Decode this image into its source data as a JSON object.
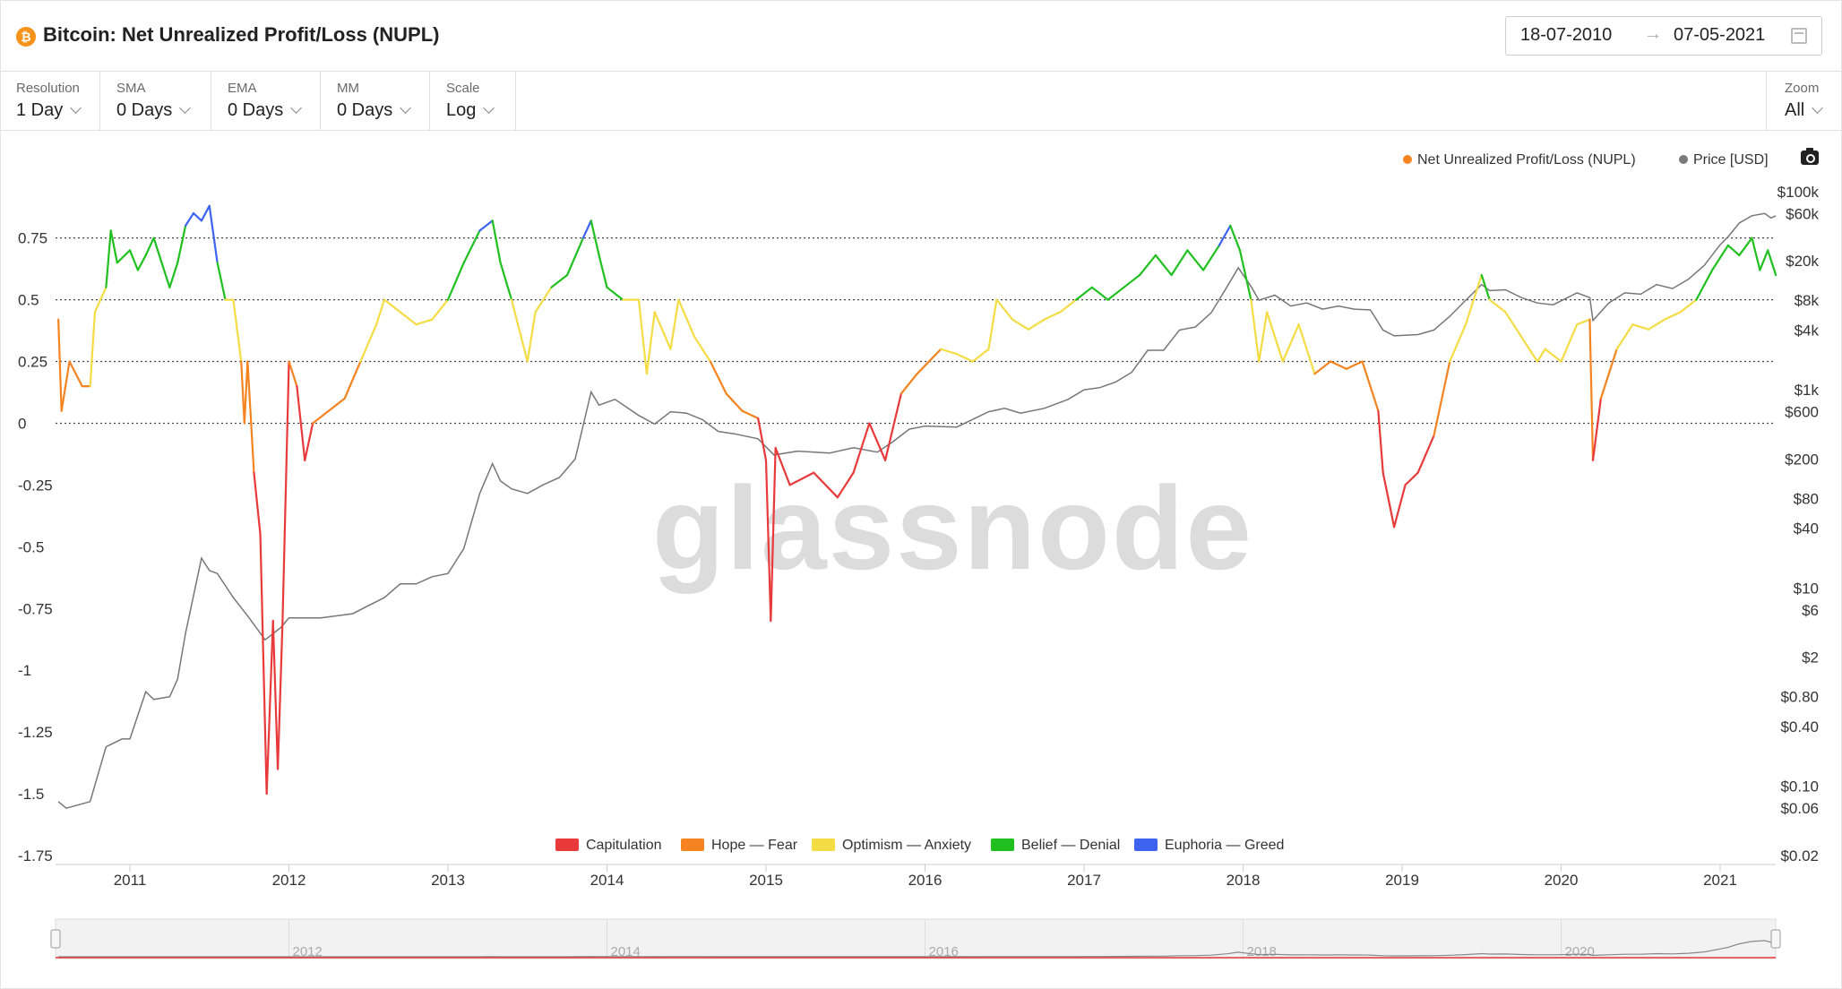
{
  "header": {
    "title": "Bitcoin: Net Unrealized Profit/Loss (NUPL)",
    "icon": "bitcoin-icon",
    "icon_glyph": "₿",
    "date_from": "18-07-2010",
    "date_arrow": "→",
    "date_to": "07-05-2021"
  },
  "controls": [
    {
      "label": "Resolution",
      "value": "1 Day"
    },
    {
      "label": "SMA",
      "value": "0 Days"
    },
    {
      "label": "EMA",
      "value": "0 Days"
    },
    {
      "label": "MM",
      "value": "0 Days"
    },
    {
      "label": "Scale",
      "value": "Log"
    }
  ],
  "zoom": {
    "label": "Zoom",
    "value": "All"
  },
  "watermark": "glassnode",
  "colors": {
    "capitulation": "#e8393b",
    "hope_fear": "#f5831f",
    "optimism_anxiety": "#f4dc45",
    "belief_denial": "#1fc01f",
    "euphoria_greed": "#3d63f0",
    "price": "#7a7a7a",
    "nupl_legend": "#f5831f"
  },
  "chart_data": {
    "type": "line",
    "title": "Bitcoin: Net Unrealized Profit/Loss (NUPL)",
    "x_ticks": [
      "2011",
      "2012",
      "2013",
      "2014",
      "2015",
      "2016",
      "2017",
      "2018",
      "2019",
      "2020",
      "2021"
    ],
    "left_axis": {
      "ticks": [
        "0.75",
        "0.5",
        "0.25",
        "0",
        "-0.25",
        "-0.5",
        "-0.75",
        "-1",
        "-1.25",
        "-1.5",
        "-1.75"
      ],
      "range": [
        -1.75,
        0.97
      ]
    },
    "right_axis": {
      "scale": "log",
      "ticks": [
        "$100k",
        "$60k",
        "$20k",
        "$8k",
        "$4k",
        "$1k",
        "$600",
        "$200",
        "$80",
        "$40",
        "$10",
        "$6",
        "$2",
        "$0.80",
        "$0.40",
        "$0.10",
        "$0.06",
        "$0.02"
      ],
      "range": [
        0.02,
        120000
      ]
    },
    "legend_top": [
      "Net Unrealized Profit/Loss (NUPL)",
      "Price [USD]"
    ],
    "zones": [
      {
        "name": "Capitulation",
        "max": 0,
        "color": "#e8393b"
      },
      {
        "name": "Hope — Fear",
        "max": 0.25,
        "color": "#f5831f"
      },
      {
        "name": "Optimism — Anxiety",
        "max": 0.5,
        "color": "#f4dc45"
      },
      {
        "name": "Belief — Denial",
        "max": 0.75,
        "color": "#1fc01f"
      },
      {
        "name": "Euphoria — Greed",
        "max": 1.0,
        "color": "#3d63f0"
      }
    ],
    "reference_lines": [
      0,
      0.25,
      0.5,
      0.75
    ],
    "series": [
      {
        "name": "Net Unrealized Profit/Loss (NUPL)",
        "points": [
          [
            2010.55,
            0.42
          ],
          [
            2010.57,
            0.05
          ],
          [
            2010.62,
            0.25
          ],
          [
            2010.7,
            0.15
          ],
          [
            2010.75,
            0.15
          ],
          [
            2010.78,
            0.45
          ],
          [
            2010.85,
            0.55
          ],
          [
            2010.88,
            0.78
          ],
          [
            2010.92,
            0.65
          ],
          [
            2011.0,
            0.7
          ],
          [
            2011.05,
            0.62
          ],
          [
            2011.1,
            0.68
          ],
          [
            2011.15,
            0.75
          ],
          [
            2011.2,
            0.65
          ],
          [
            2011.25,
            0.55
          ],
          [
            2011.3,
            0.65
          ],
          [
            2011.35,
            0.8
          ],
          [
            2011.4,
            0.85
          ],
          [
            2011.45,
            0.82
          ],
          [
            2011.5,
            0.88
          ],
          [
            2011.55,
            0.65
          ],
          [
            2011.6,
            0.5
          ],
          [
            2011.65,
            0.5
          ],
          [
            2011.7,
            0.25
          ],
          [
            2011.72,
            0.0
          ],
          [
            2011.74,
            0.25
          ],
          [
            2011.78,
            -0.2
          ],
          [
            2011.82,
            -0.45
          ],
          [
            2011.86,
            -1.5
          ],
          [
            2011.9,
            -0.8
          ],
          [
            2011.93,
            -1.4
          ],
          [
            2011.96,
            -0.8
          ],
          [
            2012.0,
            0.25
          ],
          [
            2012.05,
            0.15
          ],
          [
            2012.1,
            -0.15
          ],
          [
            2012.15,
            0.0
          ],
          [
            2012.25,
            0.05
          ],
          [
            2012.35,
            0.1
          ],
          [
            2012.45,
            0.25
          ],
          [
            2012.55,
            0.4
          ],
          [
            2012.6,
            0.5
          ],
          [
            2012.7,
            0.45
          ],
          [
            2012.8,
            0.4
          ],
          [
            2012.9,
            0.42
          ],
          [
            2013.0,
            0.5
          ],
          [
            2013.1,
            0.65
          ],
          [
            2013.2,
            0.78
          ],
          [
            2013.28,
            0.82
          ],
          [
            2013.33,
            0.65
          ],
          [
            2013.4,
            0.5
          ],
          [
            2013.5,
            0.25
          ],
          [
            2013.55,
            0.45
          ],
          [
            2013.65,
            0.55
          ],
          [
            2013.75,
            0.6
          ],
          [
            2013.85,
            0.75
          ],
          [
            2013.9,
            0.82
          ],
          [
            2013.95,
            0.68
          ],
          [
            2014.0,
            0.55
          ],
          [
            2014.1,
            0.5
          ],
          [
            2014.2,
            0.5
          ],
          [
            2014.25,
            0.2
          ],
          [
            2014.3,
            0.45
          ],
          [
            2014.4,
            0.3
          ],
          [
            2014.45,
            0.5
          ],
          [
            2014.55,
            0.35
          ],
          [
            2014.65,
            0.25
          ],
          [
            2014.75,
            0.12
          ],
          [
            2014.85,
            0.05
          ],
          [
            2014.95,
            0.02
          ],
          [
            2015.0,
            -0.15
          ],
          [
            2015.03,
            -0.8
          ],
          [
            2015.06,
            -0.1
          ],
          [
            2015.15,
            -0.25
          ],
          [
            2015.3,
            -0.2
          ],
          [
            2015.45,
            -0.3
          ],
          [
            2015.55,
            -0.2
          ],
          [
            2015.65,
            0.0
          ],
          [
            2015.75,
            -0.15
          ],
          [
            2015.85,
            0.12
          ],
          [
            2015.95,
            0.2
          ],
          [
            2016.1,
            0.3
          ],
          [
            2016.2,
            0.28
          ],
          [
            2016.3,
            0.25
          ],
          [
            2016.4,
            0.3
          ],
          [
            2016.45,
            0.5
          ],
          [
            2016.55,
            0.42
          ],
          [
            2016.65,
            0.38
          ],
          [
            2016.75,
            0.42
          ],
          [
            2016.85,
            0.45
          ],
          [
            2016.95,
            0.5
          ],
          [
            2017.05,
            0.55
          ],
          [
            2017.15,
            0.5
          ],
          [
            2017.25,
            0.55
          ],
          [
            2017.35,
            0.6
          ],
          [
            2017.45,
            0.68
          ],
          [
            2017.55,
            0.6
          ],
          [
            2017.65,
            0.7
          ],
          [
            2017.75,
            0.62
          ],
          [
            2017.85,
            0.72
          ],
          [
            2017.92,
            0.8
          ],
          [
            2017.98,
            0.7
          ],
          [
            2018.05,
            0.5
          ],
          [
            2018.1,
            0.25
          ],
          [
            2018.15,
            0.45
          ],
          [
            2018.25,
            0.25
          ],
          [
            2018.35,
            0.4
          ],
          [
            2018.45,
            0.2
          ],
          [
            2018.55,
            0.25
          ],
          [
            2018.65,
            0.22
          ],
          [
            2018.75,
            0.25
          ],
          [
            2018.85,
            0.05
          ],
          [
            2018.88,
            -0.2
          ],
          [
            2018.95,
            -0.42
          ],
          [
            2019.02,
            -0.25
          ],
          [
            2019.1,
            -0.2
          ],
          [
            2019.2,
            -0.05
          ],
          [
            2019.3,
            0.25
          ],
          [
            2019.4,
            0.4
          ],
          [
            2019.5,
            0.6
          ],
          [
            2019.55,
            0.5
          ],
          [
            2019.65,
            0.45
          ],
          [
            2019.75,
            0.35
          ],
          [
            2019.85,
            0.25
          ],
          [
            2019.9,
            0.3
          ],
          [
            2020.0,
            0.25
          ],
          [
            2020.1,
            0.4
          ],
          [
            2020.18,
            0.42
          ],
          [
            2020.2,
            -0.15
          ],
          [
            2020.25,
            0.1
          ],
          [
            2020.35,
            0.3
          ],
          [
            2020.45,
            0.4
          ],
          [
            2020.55,
            0.38
          ],
          [
            2020.65,
            0.42
          ],
          [
            2020.75,
            0.45
          ],
          [
            2020.85,
            0.5
          ],
          [
            2020.95,
            0.62
          ],
          [
            2021.05,
            0.72
          ],
          [
            2021.12,
            0.68
          ],
          [
            2021.2,
            0.75
          ],
          [
            2021.25,
            0.62
          ],
          [
            2021.3,
            0.7
          ],
          [
            2021.35,
            0.6
          ]
        ]
      },
      {
        "name": "Price [USD]",
        "points": [
          [
            2010.55,
            0.07
          ],
          [
            2010.6,
            0.06
          ],
          [
            2010.75,
            0.07
          ],
          [
            2010.85,
            0.25
          ],
          [
            2010.95,
            0.3
          ],
          [
            2011.0,
            0.3
          ],
          [
            2011.1,
            0.9
          ],
          [
            2011.15,
            0.75
          ],
          [
            2011.25,
            0.8
          ],
          [
            2011.3,
            1.2
          ],
          [
            2011.35,
            3.5
          ],
          [
            2011.45,
            20
          ],
          [
            2011.5,
            15
          ],
          [
            2011.55,
            14
          ],
          [
            2011.65,
            8
          ],
          [
            2011.75,
            5
          ],
          [
            2011.85,
            3
          ],
          [
            2011.95,
            4
          ],
          [
            2012.0,
            5
          ],
          [
            2012.2,
            5
          ],
          [
            2012.4,
            5.5
          ],
          [
            2012.6,
            8
          ],
          [
            2012.7,
            11
          ],
          [
            2012.8,
            11
          ],
          [
            2012.9,
            13
          ],
          [
            2013.0,
            14
          ],
          [
            2013.1,
            25
          ],
          [
            2013.2,
            90
          ],
          [
            2013.28,
            180
          ],
          [
            2013.33,
            120
          ],
          [
            2013.4,
            100
          ],
          [
            2013.5,
            90
          ],
          [
            2013.6,
            110
          ],
          [
            2013.7,
            130
          ],
          [
            2013.8,
            200
          ],
          [
            2013.9,
            950
          ],
          [
            2013.95,
            700
          ],
          [
            2014.05,
            800
          ],
          [
            2014.2,
            550
          ],
          [
            2014.3,
            450
          ],
          [
            2014.4,
            600
          ],
          [
            2014.5,
            580
          ],
          [
            2014.6,
            500
          ],
          [
            2014.7,
            380
          ],
          [
            2014.8,
            360
          ],
          [
            2014.95,
            320
          ],
          [
            2015.05,
            220
          ],
          [
            2015.2,
            240
          ],
          [
            2015.4,
            230
          ],
          [
            2015.55,
            260
          ],
          [
            2015.7,
            235
          ],
          [
            2015.8,
            300
          ],
          [
            2015.9,
            400
          ],
          [
            2016.0,
            430
          ],
          [
            2016.2,
            420
          ],
          [
            2016.4,
            600
          ],
          [
            2016.5,
            650
          ],
          [
            2016.6,
            580
          ],
          [
            2016.75,
            650
          ],
          [
            2016.9,
            800
          ],
          [
            2017.0,
            1000
          ],
          [
            2017.1,
            1050
          ],
          [
            2017.2,
            1200
          ],
          [
            2017.3,
            1500
          ],
          [
            2017.4,
            2500
          ],
          [
            2017.5,
            2500
          ],
          [
            2017.6,
            4000
          ],
          [
            2017.7,
            4300
          ],
          [
            2017.8,
            6000
          ],
          [
            2017.9,
            11000
          ],
          [
            2017.97,
            17000
          ],
          [
            2018.05,
            11000
          ],
          [
            2018.1,
            8000
          ],
          [
            2018.2,
            9000
          ],
          [
            2018.3,
            7000
          ],
          [
            2018.4,
            7500
          ],
          [
            2018.5,
            6500
          ],
          [
            2018.6,
            7000
          ],
          [
            2018.7,
            6500
          ],
          [
            2018.8,
            6400
          ],
          [
            2018.88,
            4000
          ],
          [
            2018.95,
            3500
          ],
          [
            2019.1,
            3600
          ],
          [
            2019.2,
            4000
          ],
          [
            2019.3,
            5500
          ],
          [
            2019.4,
            8000
          ],
          [
            2019.5,
            11500
          ],
          [
            2019.55,
            10000
          ],
          [
            2019.65,
            10200
          ],
          [
            2019.75,
            8500
          ],
          [
            2019.85,
            7500
          ],
          [
            2019.95,
            7200
          ],
          [
            2020.1,
            9500
          ],
          [
            2020.18,
            8500
          ],
          [
            2020.2,
            5000
          ],
          [
            2020.3,
            7500
          ],
          [
            2020.4,
            9500
          ],
          [
            2020.5,
            9200
          ],
          [
            2020.6,
            11500
          ],
          [
            2020.7,
            10500
          ],
          [
            2020.8,
            13000
          ],
          [
            2020.9,
            18000
          ],
          [
            2021.0,
            29000
          ],
          [
            2021.05,
            35000
          ],
          [
            2021.12,
            48000
          ],
          [
            2021.2,
            57000
          ],
          [
            2021.28,
            60000
          ],
          [
            2021.32,
            54000
          ],
          [
            2021.35,
            57000
          ]
        ]
      }
    ],
    "navigator": {
      "x_ticks": [
        "2012",
        "2014",
        "2016",
        "2018",
        "2020"
      ]
    },
    "grid": false
  }
}
